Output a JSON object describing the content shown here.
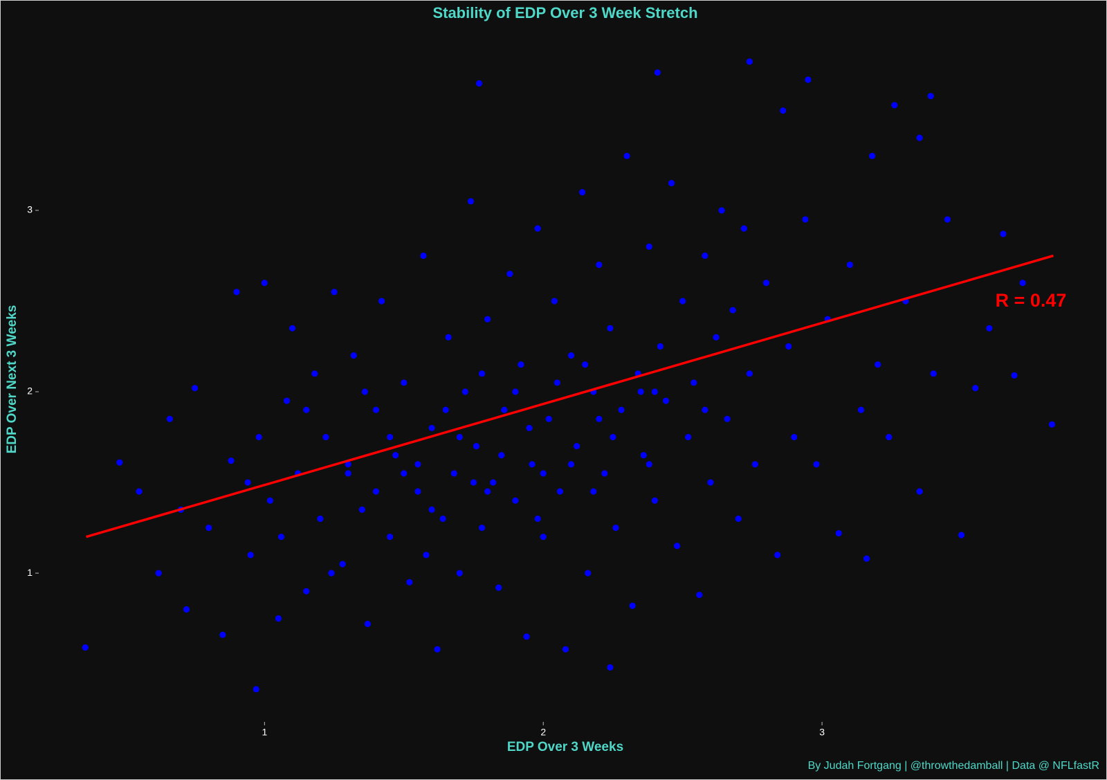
{
  "chart_data": {
    "type": "scatter",
    "title": "Stability of EDP Over 3 Week Stretch",
    "x_label": "EDP Over 3 Weeks",
    "y_label": "EDP Over Next 3 Weeks",
    "caption": "By Judah Fortgang | @throwthedamball | Data @ NFLfastR",
    "annotation": "R = 0.47",
    "xlim": [
      0.19,
      4.0
    ],
    "ylim": [
      0.18,
      4.03
    ],
    "xticks": [
      1,
      2,
      3
    ],
    "yticks": [
      1,
      2,
      3
    ],
    "grid": false,
    "series": [
      {
        "color": "#0000ff",
        "x": [
          0.357,
          0.97,
          2.24,
          2.74,
          2.41,
          1.77,
          2.95,
          3.39,
          3.825,
          3.69,
          3.5,
          3.65,
          3.16,
          0.48,
          3.35,
          0.55,
          0.62,
          0.7,
          0.75,
          0.8,
          0.85,
          0.88,
          0.9,
          0.95,
          0.98,
          1.0,
          1.02,
          1.05,
          1.08,
          1.1,
          1.12,
          1.15,
          1.18,
          1.2,
          1.22,
          1.25,
          1.28,
          1.3,
          1.32,
          1.35,
          1.37,
          1.4,
          1.42,
          1.45,
          1.47,
          1.5,
          1.52,
          1.55,
          1.57,
          1.6,
          1.62,
          1.64,
          1.66,
          1.68,
          1.7,
          1.72,
          1.74,
          1.76,
          1.78,
          1.8,
          1.82,
          1.84,
          1.86,
          1.88,
          1.9,
          1.92,
          1.94,
          1.96,
          1.98,
          2.0,
          2.02,
          2.04,
          2.06,
          2.08,
          2.1,
          2.12,
          2.14,
          2.16,
          2.18,
          2.2,
          2.22,
          2.24,
          2.26,
          2.28,
          2.3,
          2.32,
          2.34,
          2.36,
          2.38,
          2.4,
          2.42,
          2.44,
          2.46,
          2.48,
          2.5,
          2.52,
          2.54,
          2.56,
          2.58,
          2.6,
          2.62,
          2.64,
          2.66,
          2.68,
          2.7,
          2.72,
          2.74,
          2.76,
          2.8,
          2.84,
          2.86,
          2.88,
          2.9,
          2.94,
          2.98,
          3.02,
          3.06,
          3.1,
          3.14,
          3.18,
          3.2,
          3.24,
          3.26,
          3.3,
          3.35,
          3.4,
          3.45,
          3.55,
          3.6,
          3.72,
          1.15,
          1.3,
          1.45,
          1.55,
          1.65,
          1.75,
          1.85,
          1.95,
          2.05,
          2.15,
          2.25,
          2.35,
          1.4,
          1.6,
          1.8,
          2.0,
          2.2,
          2.4,
          1.5,
          1.7,
          1.9,
          2.1,
          0.66,
          0.72,
          0.94,
          1.06,
          1.24,
          1.36,
          1.58,
          1.78,
          1.98,
          2.18,
          2.38,
          2.58
        ],
        "values": [
          0.59,
          0.36,
          0.48,
          3.82,
          3.76,
          3.7,
          3.72,
          3.63,
          1.82,
          2.09,
          1.21,
          2.87,
          1.08,
          1.61,
          3.4,
          1.45,
          1.0,
          1.35,
          2.02,
          1.25,
          0.66,
          1.62,
          2.55,
          1.1,
          1.75,
          2.6,
          1.4,
          0.75,
          1.95,
          2.35,
          1.55,
          0.9,
          2.1,
          1.3,
          1.75,
          2.55,
          1.05,
          1.6,
          2.2,
          1.35,
          0.72,
          1.9,
          2.5,
          1.2,
          1.65,
          2.05,
          0.95,
          1.45,
          2.75,
          1.8,
          0.58,
          1.3,
          2.3,
          1.55,
          1.0,
          2.0,
          3.05,
          1.7,
          1.25,
          2.4,
          1.5,
          0.92,
          1.9,
          2.65,
          1.4,
          2.15,
          0.65,
          1.6,
          2.9,
          1.2,
          1.85,
          2.5,
          1.45,
          0.58,
          2.2,
          1.7,
          3.1,
          1.0,
          2.0,
          2.7,
          1.55,
          2.35,
          1.25,
          1.9,
          3.3,
          0.82,
          2.1,
          1.65,
          2.8,
          1.4,
          2.25,
          1.95,
          3.15,
          1.15,
          2.5,
          1.75,
          2.05,
          0.88,
          2.75,
          1.5,
          2.3,
          3.0,
          1.85,
          2.45,
          1.3,
          2.9,
          2.1,
          1.6,
          2.6,
          1.1,
          3.55,
          2.25,
          1.75,
          2.95,
          1.6,
          2.4,
          1.22,
          2.7,
          1.9,
          3.3,
          2.15,
          1.75,
          3.58,
          2.5,
          1.45,
          2.1,
          2.95,
          2.02,
          2.35,
          2.6,
          1.9,
          1.55,
          1.75,
          1.6,
          1.9,
          1.5,
          1.65,
          1.8,
          2.05,
          2.15,
          1.75,
          2.0,
          1.45,
          1.35,
          1.45,
          1.55,
          1.85,
          2.0,
          1.55,
          1.75,
          2.0,
          1.6,
          1.85,
          0.8,
          1.5,
          1.2,
          1.0,
          2.0,
          1.1,
          2.1,
          1.3,
          1.45,
          1.6,
          1.9
        ]
      }
    ],
    "trend": {
      "color": "#ff0000",
      "x": [
        0.36,
        3.83
      ],
      "values": [
        1.2,
        2.75
      ]
    }
  }
}
